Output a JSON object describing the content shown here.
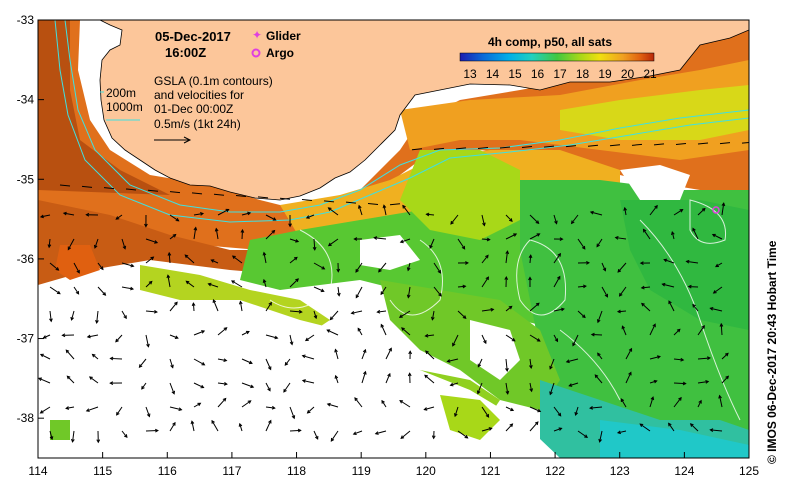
{
  "header": {
    "date": "05-Dec-2017",
    "time": "16:00Z"
  },
  "legend": {
    "glider_label": "Glider",
    "argo_label": "Argo",
    "glider_color": "#e040e0",
    "argo_color": "#e040e0"
  },
  "info": {
    "gsla_line1": "GSLA (0.1m contours)",
    "gsla_line2": "and velocities for",
    "gsla_line3": "01-Dec 00:00Z",
    "gsla_line4": "0.5m/s (1kt 24h)",
    "contour_200": "200m",
    "contour_1000": "1000m"
  },
  "colorbar": {
    "title": "4h comp, p50, all sats",
    "ticks": [
      "13",
      "14",
      "15",
      "16",
      "17",
      "18",
      "19",
      "20",
      "21"
    ],
    "colors": [
      "#1c1cb0",
      "#0a6ad8",
      "#00aee8",
      "#20d0c0",
      "#40c840",
      "#a8d818",
      "#f0e010",
      "#f0a020",
      "#e06010",
      "#b82808"
    ]
  },
  "axes": {
    "x_ticks": [
      "114",
      "115",
      "116",
      "117",
      "118",
      "119",
      "120",
      "121",
      "122",
      "123",
      "124",
      "125"
    ],
    "y_ticks": [
      "-33",
      "-34",
      "-35",
      "-36",
      "-37",
      "-38"
    ],
    "x_range": [
      114,
      125
    ],
    "y_range": [
      -38.5,
      -33
    ]
  },
  "credit": "© IMOS 06-Dec-2017 20:43 Hobart Time",
  "colors": {
    "land": "#fcc69a",
    "isobath": "#40e0e0",
    "contour": "#ffffff",
    "arrow": "#000000"
  }
}
